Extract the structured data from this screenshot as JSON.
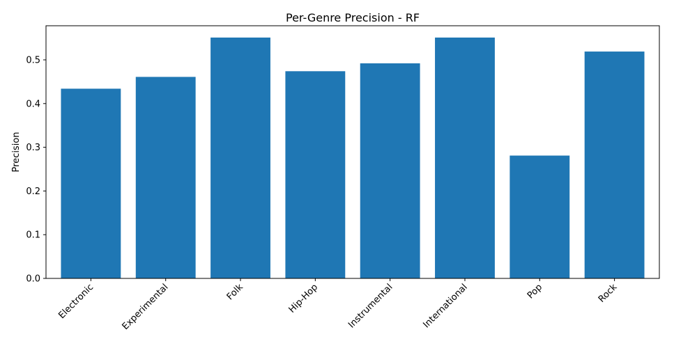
{
  "chart_data": {
    "type": "bar",
    "title": "Per-Genre Precision - RF",
    "xlabel": "",
    "ylabel": "Precision",
    "categories": [
      "Electronic",
      "Experimental",
      "Folk",
      "Hip-Hop",
      "Instrumental",
      "International",
      "Pop",
      "Rock"
    ],
    "values": [
      0.434,
      0.461,
      0.551,
      0.474,
      0.492,
      0.551,
      0.281,
      0.519
    ],
    "ylim": [
      0,
      0.578
    ],
    "yticks": [
      "0.0",
      "0.1",
      "0.2",
      "0.3",
      "0.4",
      "0.5"
    ],
    "bar_color": "#1f77b4",
    "grid": false,
    "legend": "none"
  }
}
